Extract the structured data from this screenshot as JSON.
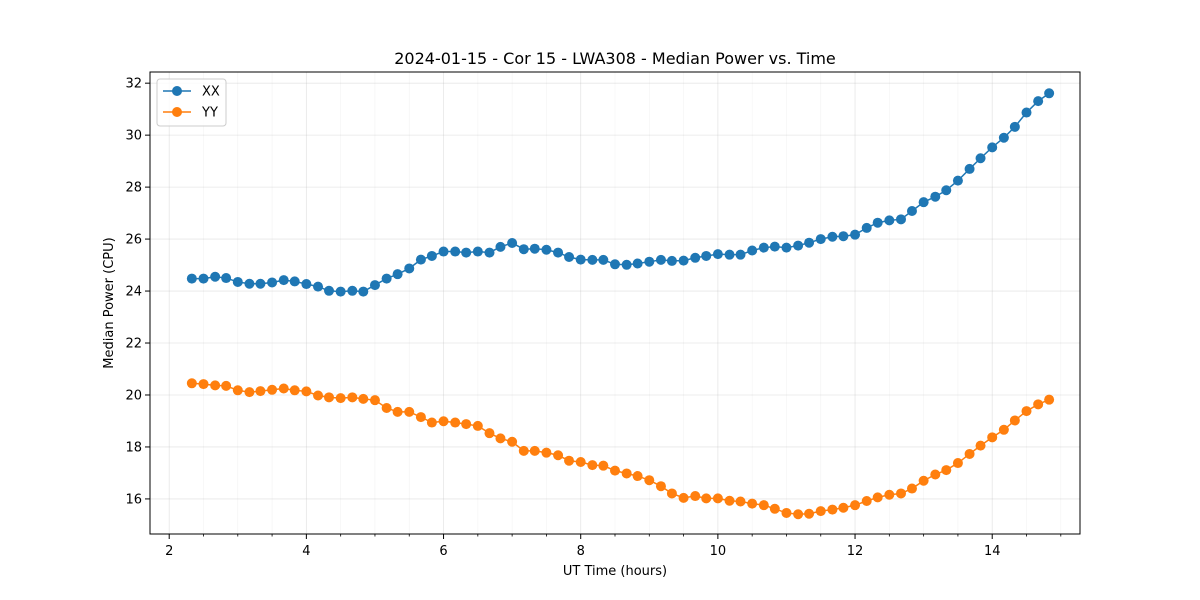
{
  "chart_data": {
    "type": "line",
    "title": "2024-01-15 - Cor 15 - LWA308 - Median Power vs. Time",
    "xlabel": "UT Time (hours)",
    "ylabel": "Median Power (CPU)",
    "xlim": [
      1.72,
      15.28
    ],
    "ylim": [
      14.65,
      32.43
    ],
    "xticks": [
      2,
      4,
      6,
      8,
      10,
      12,
      14
    ],
    "xtick_labels": [
      "2",
      "4",
      "6",
      "8",
      "10",
      "12",
      "14"
    ],
    "yticks": [
      16,
      18,
      20,
      22,
      24,
      26,
      28,
      30,
      32
    ],
    "ytick_labels": [
      "16",
      "18",
      "20",
      "22",
      "24",
      "26",
      "28",
      "30",
      "32"
    ],
    "grid": true,
    "legend": "top-left",
    "x": [
      2.33,
      2.5,
      2.67,
      2.83,
      3.0,
      3.17,
      3.33,
      3.5,
      3.67,
      3.83,
      4.0,
      4.17,
      4.33,
      4.5,
      4.67,
      4.83,
      5.0,
      5.17,
      5.33,
      5.5,
      5.67,
      5.83,
      6.0,
      6.17,
      6.33,
      6.5,
      6.67,
      6.83,
      7.0,
      7.17,
      7.33,
      7.5,
      7.67,
      7.83,
      8.0,
      8.17,
      8.33,
      8.5,
      8.67,
      8.83,
      9.0,
      9.17,
      9.33,
      9.5,
      9.67,
      9.83,
      10.0,
      10.17,
      10.33,
      10.5,
      10.67,
      10.83,
      11.0,
      11.17,
      11.33,
      11.5,
      11.67,
      11.83,
      12.0,
      12.17,
      12.33,
      12.5,
      12.67,
      12.83,
      13.0,
      13.17,
      13.33,
      13.5,
      13.67,
      13.83,
      14.0,
      14.17,
      14.33,
      14.5,
      14.67,
      14.83
    ],
    "series": [
      {
        "name": "XX",
        "color": "#1f77b4",
        "values": [
          24.48,
          24.48,
          24.55,
          24.5,
          24.35,
          24.28,
          24.28,
          24.33,
          24.42,
          24.37,
          24.27,
          24.17,
          24.01,
          23.98,
          24.01,
          23.98,
          24.23,
          24.48,
          24.65,
          24.87,
          25.21,
          25.35,
          25.52,
          25.52,
          25.48,
          25.52,
          25.48,
          25.7,
          25.85,
          25.61,
          25.63,
          25.59,
          25.48,
          25.31,
          25.21,
          25.2,
          25.2,
          25.03,
          25.01,
          25.06,
          25.13,
          25.2,
          25.16,
          25.17,
          25.28,
          25.35,
          25.42,
          25.4,
          25.4,
          25.56,
          25.67,
          25.71,
          25.67,
          25.75,
          25.86,
          26.0,
          26.09,
          26.11,
          26.17,
          26.43,
          26.63,
          26.72,
          26.76,
          27.08,
          27.42,
          27.63,
          27.88,
          28.25,
          28.7,
          29.11,
          29.53,
          29.9,
          30.32,
          30.87,
          31.31,
          31.61
        ]
      },
      {
        "name": "YY",
        "color": "#ff7f0e",
        "values": [
          20.45,
          20.42,
          20.37,
          20.35,
          20.18,
          20.11,
          20.15,
          20.2,
          20.25,
          20.18,
          20.14,
          19.98,
          19.91,
          19.88,
          19.91,
          19.85,
          19.8,
          19.5,
          19.35,
          19.35,
          19.15,
          18.94,
          18.99,
          18.94,
          18.88,
          18.81,
          18.53,
          18.33,
          18.2,
          17.85,
          17.85,
          17.78,
          17.68,
          17.47,
          17.42,
          17.3,
          17.28,
          17.09,
          16.98,
          16.88,
          16.72,
          16.49,
          16.21,
          16.04,
          16.11,
          16.02,
          16.02,
          15.93,
          15.9,
          15.82,
          15.76,
          15.62,
          15.46,
          15.41,
          15.43,
          15.53,
          15.59,
          15.66,
          15.76,
          15.92,
          16.06,
          16.16,
          16.21,
          16.4,
          16.7,
          16.94,
          17.11,
          17.38,
          17.73,
          18.05,
          18.37,
          18.66,
          19.02,
          19.38,
          19.64,
          19.82
        ]
      }
    ]
  }
}
